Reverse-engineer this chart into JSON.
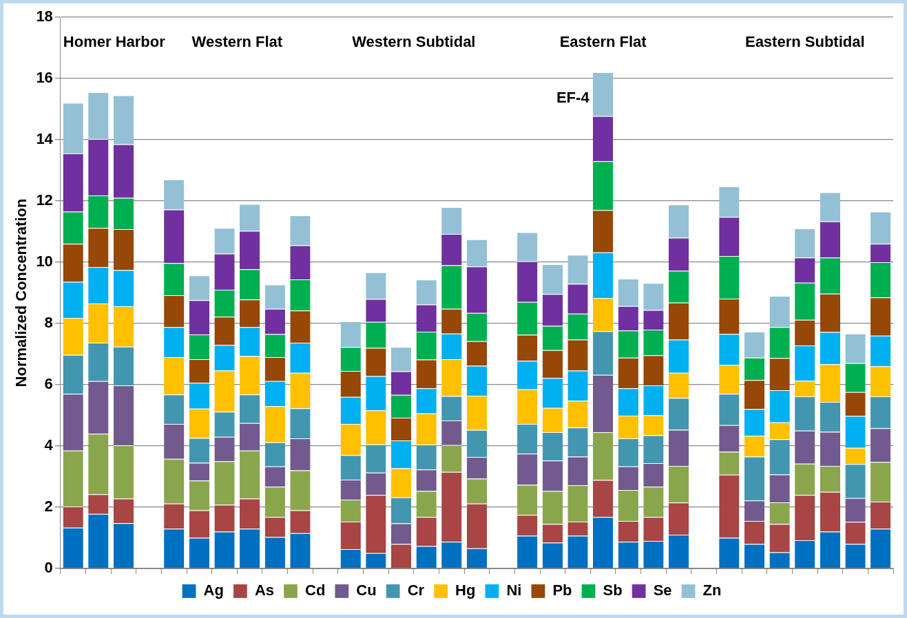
{
  "chart_data": {
    "type": "bar",
    "stacked": true,
    "ylabel": "Normalized Concentration",
    "categories": [
      null,
      null,
      null,
      null,
      null,
      null,
      null,
      null,
      null,
      null,
      null,
      null,
      null,
      null,
      null,
      null,
      null,
      null,
      null,
      null,
      null,
      null,
      null,
      null,
      null,
      null,
      null,
      null,
      null,
      null,
      null,
      null,
      null
    ],
    "ylim": [
      0,
      18
    ],
    "yticks": [
      0,
      2,
      4,
      6,
      8,
      10,
      12,
      14,
      16,
      18
    ],
    "grid": "y",
    "legend": "bottom",
    "tick_labels": "y",
    "annotations": [
      "Homer Harbor",
      "Western Flat",
      "Western Subtidal",
      "Eastern Flat",
      "Eastern Subtidal",
      "EF-4"
    ],
    "series": [
      {
        "name": "Ag",
        "color": "#0070c0",
        "values": [
          1.33,
          1.78,
          1.48,
          null,
          1.3,
          1.0,
          1.2,
          1.3,
          1.03,
          1.15,
          null,
          0.63,
          0.5,
          0,
          0.73,
          0.87,
          0.66,
          null,
          1.07,
          0.84,
          1.07,
          1.68,
          0.87,
          0.9,
          1.1,
          null,
          1.0,
          0.8,
          0.53,
          0.92,
          1.2,
          0.8,
          1.3
        ]
      },
      {
        "name": "As",
        "color": "#a84545",
        "values": [
          0.69,
          0.64,
          0.8,
          null,
          0.82,
          0.9,
          0.88,
          0.98,
          0.65,
          0.75,
          null,
          0.9,
          1.9,
          0.8,
          0.95,
          2.28,
          1.46,
          null,
          0.68,
          0.61,
          0.46,
          1.21,
          0.68,
          0.78,
          1.05,
          null,
          2.06,
          0.75,
          0.92,
          1.48,
          1.3,
          0.72,
          0.88
        ]
      },
      {
        "name": "Cd",
        "color": "#8aa64c",
        "values": [
          1.83,
          1.98,
          1.74,
          null,
          1.46,
          0.97,
          1.42,
          1.57,
          0.99,
          1.3,
          null,
          0.72,
          0,
          0,
          0.85,
          0.88,
          0.81,
          null,
          0.98,
          1.08,
          1.19,
          1.56,
          1.01,
          0.99,
          1.2,
          null,
          0.75,
          0,
          0.71,
          1.02,
          0.85,
          0,
          1.3
        ]
      },
      {
        "name": "Cu",
        "color": "#725a8e",
        "values": [
          1.85,
          1.72,
          1.96,
          null,
          1.14,
          0.58,
          0.8,
          0.9,
          0.66,
          1.05,
          null,
          0.65,
          0.73,
          0.67,
          0.7,
          0.8,
          0.71,
          null,
          1.02,
          0.99,
          0.93,
          1.87,
          0.77,
          0.77,
          1.18,
          null,
          0.87,
          0.67,
          0.91,
          1.08,
          1.11,
          0.78,
          1.1
        ]
      },
      {
        "name": "Cr",
        "color": "#4396b0",
        "values": [
          1.27,
          1.25,
          1.26,
          null,
          0.96,
          0.81,
          0.82,
          0.93,
          0.79,
          0.98,
          null,
          0.8,
          0.92,
          0.85,
          0.81,
          0.8,
          0.88,
          null,
          0.97,
          0.93,
          0.95,
          1.43,
          0.92,
          0.91,
          1.04,
          null,
          1.02,
          1.43,
          1.15,
          1.12,
          0.98,
          1.11,
          1.04
        ]
      },
      {
        "name": "Hg",
        "color": "#ffc000",
        "values": [
          1.21,
          1.28,
          1.32,
          null,
          1.22,
          0.96,
          1.34,
          1.25,
          1.18,
          1.16,
          null,
          1.02,
          1.12,
          0.95,
          1.02,
          1.2,
          1.12,
          null,
          1.13,
          0.79,
          0.88,
          1.08,
          0.74,
          0.65,
          0.82,
          null,
          0.95,
          0.68,
          0.55,
          0.51,
          1.23,
          0.53,
          0.98
        ]
      },
      {
        "name": "Ni",
        "color": "#00b0f0",
        "values": [
          1.18,
          1.19,
          1.18,
          null,
          0.98,
          0.84,
          0.84,
          0.95,
          0.82,
          0.98,
          null,
          0.88,
          1.11,
          0.91,
          0.82,
          0.84,
          0.98,
          null,
          0.93,
          0.98,
          0.98,
          1.49,
          0.89,
          0.98,
          1.08,
          null,
          1.01,
          0.87,
          1.05,
          1.15,
          1.05,
          1.04,
          1.0
        ]
      },
      {
        "name": "Pb",
        "color": "#974706",
        "values": [
          1.24,
          1.28,
          1.34,
          null,
          1.04,
          0.77,
          0.92,
          0.9,
          0.78,
          1.05,
          null,
          0.85,
          0.92,
          0.74,
          0.94,
          0.81,
          0.8,
          null,
          0.85,
          0.91,
          1.01,
          1.38,
          1.0,
          0.98,
          1.21,
          null,
          1.15,
          0.95,
          1.05,
          0.84,
          1.25,
          0.78,
          1.25
        ]
      },
      {
        "name": "Sb",
        "color": "#00b050",
        "values": [
          1.05,
          1.06,
          1.02,
          null,
          1.05,
          0.81,
          0.88,
          0.99,
          0.75,
          1.02,
          null,
          0.78,
          0.85,
          0.75,
          0.91,
          1.42,
          0.92,
          null,
          1.07,
          0.79,
          0.85,
          1.6,
          0.89,
          0.84,
          1.04,
          null,
          1.39,
          0.73,
          1.01,
          1.21,
          1.18,
          0.94,
          1.15
        ]
      },
      {
        "name": "Se",
        "color": "#7030a0",
        "values": [
          1.9,
          1.84,
          1.75,
          null,
          1.75,
          1.12,
          1.18,
          1.25,
          0.83,
          1.11,
          null,
          0,
          0.75,
          0.77,
          0.89,
          1.02,
          1.52,
          null,
          1.33,
          1.04,
          0.97,
          1.47,
          0.8,
          0.64,
          1.08,
          null,
          1.28,
          0,
          0,
          0.82,
          1.18,
          0,
          0.6
        ]
      },
      {
        "name": "Zn",
        "color": "#93c0d4",
        "values": [
          1.65,
          1.53,
          1.6,
          null,
          0.98,
          0.81,
          0.84,
          0.88,
          0.79,
          0.98,
          null,
          0.84,
          0.87,
          0.79,
          0.81,
          0.88,
          0.89,
          null,
          0.95,
          0.97,
          0.95,
          1.43,
          0.89,
          0.88,
          1.08,
          null,
          0.99,
          0.85,
          1.02,
          0.95,
          0.95,
          0.97,
          1.05
        ]
      }
    ]
  }
}
